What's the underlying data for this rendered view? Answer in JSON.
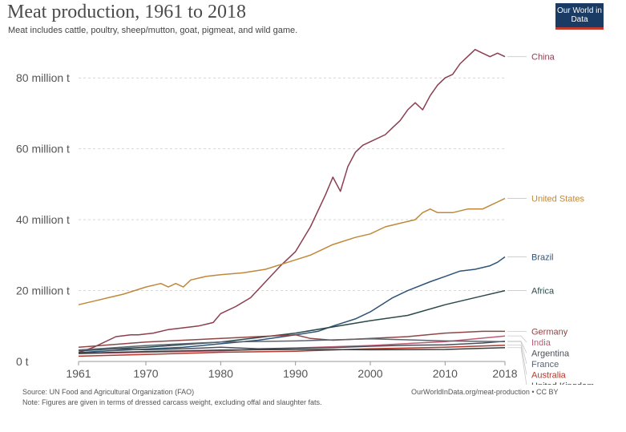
{
  "header": {
    "title": "Meat production, 1961 to 2018",
    "subtitle": "Meat includes cattle, poultry, sheep/mutton, goat, pigmeat, and wild game.",
    "logo_text": "Our World in Data"
  },
  "footer": {
    "source": "Source: UN Food and Agricultural Organization (FAO)",
    "note": "Note: Figures are given in terms of dressed carcass weight, excluding offal and slaughter fats.",
    "url": "OurWorldInData.org/meat-production • CC BY"
  },
  "colors": {
    "logo_bg": "#1a3b64",
    "logo_accent": "#c23b2d"
  },
  "chart_data": {
    "type": "line",
    "xlim": [
      1961,
      2018
    ],
    "ylim": [
      0,
      90
    ],
    "x_ticks": [
      1961,
      1970,
      1980,
      1990,
      2000,
      2010,
      2018
    ],
    "y_ticks": [
      {
        "value": 0,
        "label": "0 t"
      },
      {
        "value": 20,
        "label": "20 million t"
      },
      {
        "value": 40,
        "label": "40 million t"
      },
      {
        "value": 60,
        "label": "60 million t"
      },
      {
        "value": 80,
        "label": "80 million t"
      }
    ],
    "grid": "horizontal dotted",
    "series": [
      {
        "name": "China",
        "color": "#8a3e4f",
        "x": [
          1961,
          1963,
          1965,
          1966,
          1968,
          1969,
          1971,
          1973,
          1975,
          1977,
          1978,
          1979,
          1980,
          1982,
          1984,
          1986,
          1988,
          1990,
          1992,
          1994,
          1995,
          1996,
          1997,
          1998,
          1999,
          2000,
          2002,
          2003,
          2004,
          2005,
          2006,
          2007,
          2008,
          2009,
          2010,
          2011,
          2012,
          2013,
          2014,
          2015,
          2016,
          2017,
          2018
        ],
        "y": [
          2.5,
          4,
          6,
          7,
          7.5,
          7.5,
          8,
          9,
          9.5,
          10,
          10.5,
          11,
          13.5,
          15.5,
          18,
          22.5,
          27,
          31,
          38,
          47,
          52,
          48,
          55,
          59,
          61,
          62,
          64,
          66,
          68,
          71,
          73,
          71,
          75,
          78,
          80,
          81,
          84,
          86,
          88,
          87,
          86,
          87,
          86
        ]
      },
      {
        "name": "United States",
        "color": "#c0883b",
        "x": [
          1961,
          1963,
          1965,
          1967,
          1970,
          1972,
          1973,
          1974,
          1975,
          1976,
          1978,
          1980,
          1983,
          1986,
          1989,
          1992,
          1995,
          1998,
          2000,
          2002,
          2004,
          2006,
          2007,
          2008,
          2009,
          2011,
          2013,
          2015,
          2016,
          2017,
          2018
        ],
        "y": [
          16,
          17,
          18,
          19,
          21,
          22,
          21,
          22,
          21,
          23,
          24,
          24.5,
          25,
          26,
          28,
          30,
          33,
          35,
          36,
          38,
          39,
          40,
          42,
          43,
          42,
          42,
          43,
          43,
          44,
          45,
          46
        ]
      },
      {
        "name": "Brazil",
        "color": "#2e5378",
        "x": [
          1961,
          1965,
          1970,
          1975,
          1980,
          1985,
          1990,
          1993,
          1995,
          1998,
          2000,
          2003,
          2005,
          2008,
          2010,
          2012,
          2014,
          2016,
          2017,
          2018
        ],
        "y": [
          2.5,
          3,
          3.5,
          4,
          5,
          6,
          7.5,
          8.5,
          10,
          12,
          14,
          18,
          20,
          22.5,
          24,
          25.5,
          26,
          27,
          28,
          29.5
        ]
      },
      {
        "name": "Africa",
        "color": "#2b4a4a",
        "x": [
          1961,
          1970,
          1980,
          1990,
          2000,
          2005,
          2010,
          2015,
          2018
        ],
        "y": [
          3,
          4,
          5.5,
          8,
          11.5,
          13,
          16,
          18.5,
          20
        ]
      },
      {
        "name": "Germany",
        "color": "#8e4646",
        "x": [
          1961,
          1970,
          1980,
          1985,
          1990,
          1992,
          1995,
          2000,
          2005,
          2010,
          2015,
          2018
        ],
        "y": [
          4,
          5.5,
          6.5,
          7,
          7.5,
          6.5,
          6,
          6.5,
          7,
          8,
          8.5,
          8.5
        ]
      },
      {
        "name": "India",
        "color": "#c05a72",
        "x": [
          1961,
          1970,
          1980,
          1990,
          2000,
          2010,
          2018
        ],
        "y": [
          2.2,
          2.6,
          3,
          3.8,
          4.5,
          5.6,
          7.2
        ]
      },
      {
        "name": "Argentina",
        "color": "#4a4f58",
        "x": [
          1961,
          1965,
          1970,
          1975,
          1980,
          1985,
          1990,
          1995,
          2000,
          2005,
          2010,
          2015,
          2018
        ],
        "y": [
          3.2,
          3.6,
          3.3,
          3.6,
          4,
          3.6,
          3.8,
          3.9,
          4.3,
          4.6,
          4.7,
          5.2,
          5.7
        ]
      },
      {
        "name": "France",
        "color": "#5a6470",
        "x": [
          1961,
          1970,
          1980,
          1990,
          2000,
          2010,
          2018
        ],
        "y": [
          3.2,
          4.5,
          5.5,
          5.8,
          6.4,
          5.8,
          5.6
        ]
      },
      {
        "name": "Australia",
        "color": "#b03a2e",
        "x": [
          1961,
          1970,
          1980,
          1990,
          2000,
          2010,
          2018
        ],
        "y": [
          1.5,
          2,
          2.6,
          2.9,
          3.6,
          4,
          4.6
        ]
      },
      {
        "name": "United Kingdom",
        "color": "#3c3c3c",
        "x": [
          1961,
          1970,
          1980,
          1990,
          2000,
          2010,
          2018
        ],
        "y": [
          2.3,
          2.8,
          3.2,
          3.4,
          3.3,
          3.4,
          3.9
        ]
      }
    ]
  }
}
